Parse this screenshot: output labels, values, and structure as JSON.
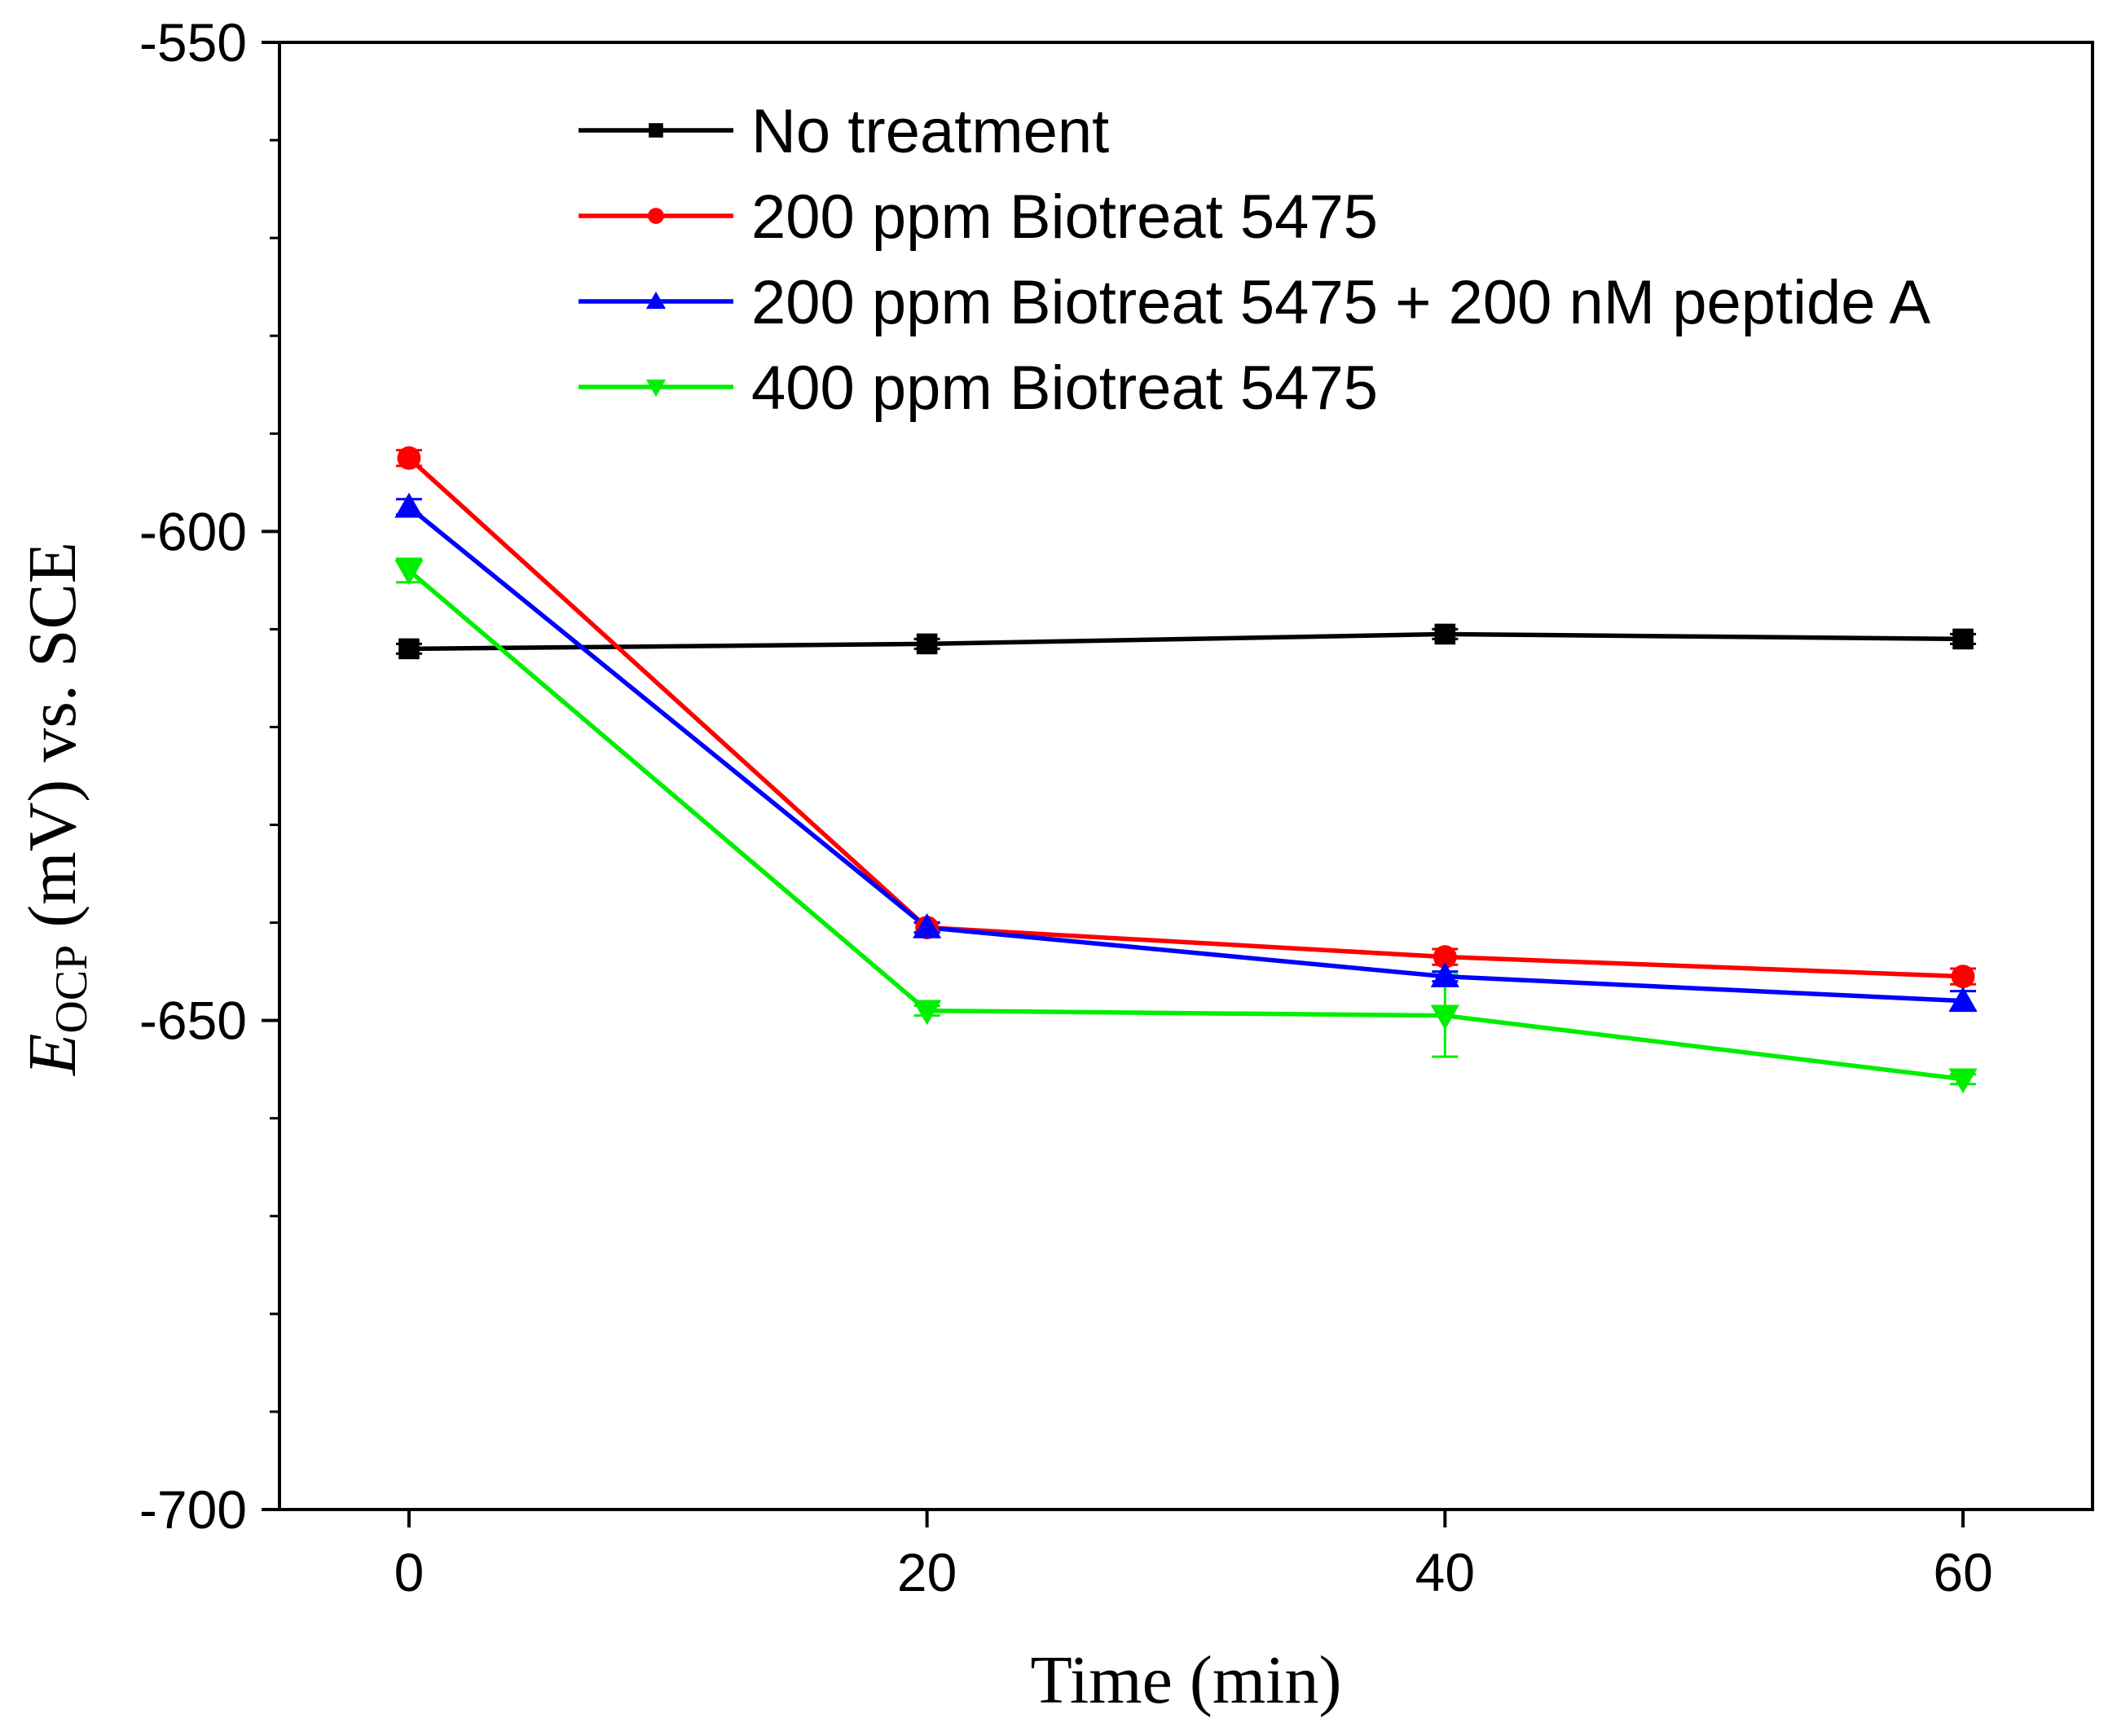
{
  "chart_data": {
    "type": "line",
    "title": "",
    "xlabel": "Time (min)",
    "ylabel_main": "E",
    "ylabel_subscript": "OCP",
    "ylabel_rest": " (mV) vs. SCE",
    "x": [
      0,
      20,
      40,
      60
    ],
    "xlim": [
      -5,
      65
    ],
    "ylim": [
      -700,
      -550
    ],
    "xticks": [
      0,
      20,
      40,
      60
    ],
    "xtick_labels": [
      "0",
      "20",
      "40",
      "60"
    ],
    "yticks": [
      -700,
      -650,
      -600,
      -550
    ],
    "ytick_labels": [
      "-700",
      "-650",
      "-600",
      "-550"
    ],
    "y_minor_step": 10,
    "grid": false,
    "legend_position": "top",
    "series": [
      {
        "name": "No treatment",
        "color": "#000000",
        "marker": "square",
        "values": [
          -612,
          -611.5,
          -610.5,
          -611
        ],
        "errors": [
          0.5,
          0.5,
          0.5,
          0.5
        ]
      },
      {
        "name": "200 ppm Biotreat 5475",
        "color": "#ff0000",
        "marker": "circle",
        "values": [
          -592.5,
          -640.5,
          -643.5,
          -645.5
        ],
        "errors": [
          0.8,
          0.5,
          0.8,
          0.8
        ]
      },
      {
        "name": "200 ppm Biotreat 5475 + 200 nM peptide A",
        "color": "#0000ff",
        "marker": "triangle-up",
        "values": [
          -597.5,
          -640.5,
          -645.5,
          -648
        ],
        "errors": [
          0.8,
          0.5,
          0.5,
          1.0
        ]
      },
      {
        "name": "400 ppm Biotreat 5475",
        "color": "#00ee00",
        "marker": "triangle-down",
        "values": [
          -604,
          -649,
          -649.5,
          -656
        ],
        "errors": [
          1.2,
          0.5,
          4.2,
          0.5
        ]
      }
    ]
  }
}
